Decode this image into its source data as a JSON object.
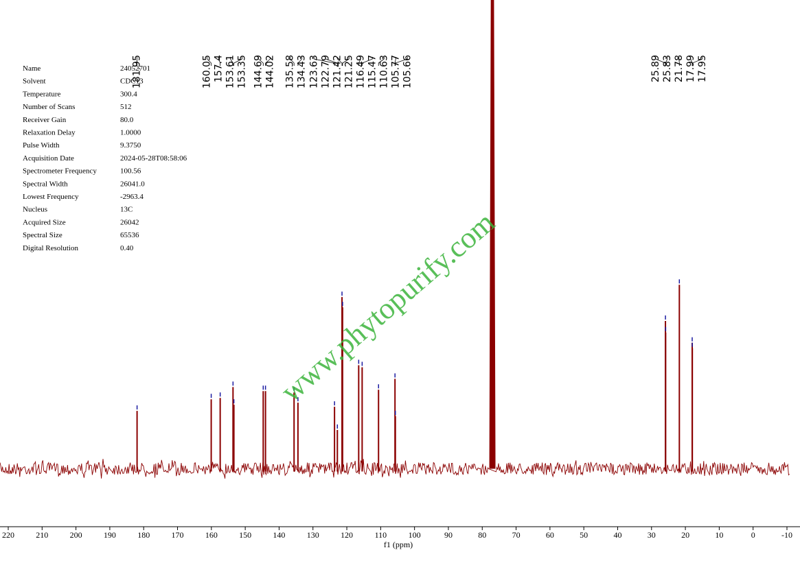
{
  "chart_data": {
    "type": "nmr",
    "x_label": "f1 (ppm)",
    "xlim": [
      220,
      -10
    ],
    "ylim": [
      -80,
      680
    ],
    "xticks": [
      220,
      210,
      200,
      190,
      180,
      170,
      160,
      150,
      140,
      130,
      120,
      110,
      100,
      90,
      80,
      70,
      60,
      50,
      40,
      30,
      20,
      10,
      0,
      -10
    ],
    "color": "#8b0000",
    "marker_color": "#1a1aa0",
    "peaks": {
      "x": [
        181.95,
        160.05,
        157.4,
        153.61,
        153.35,
        144.69,
        144.02,
        135.58,
        134.43,
        123.63,
        122.79,
        121.42,
        121.25,
        116.49,
        115.47,
        110.63,
        105.77,
        105.66,
        25.89,
        25.83,
        21.78,
        17.99,
        17.95
      ],
      "values": [
        85,
        102,
        104,
        120,
        94,
        114,
        114,
        112,
        97,
        91,
        57,
        252,
        237,
        152,
        149,
        116,
        132,
        77,
        217,
        200,
        270,
        185,
        177
      ]
    },
    "solvent_peak": {
      "x": 77.0,
      "value": 800
    },
    "watermark": "www.phytopurify.com",
    "parameters": [
      [
        "Name",
        "24052701"
      ],
      [
        "Solvent",
        "CDC13"
      ],
      [
        "Temperature",
        "300.4"
      ],
      [
        "Number of Scans",
        "512"
      ],
      [
        "Receiver Gain",
        "80.0"
      ],
      [
        "Relaxation Delay",
        "1.0000"
      ],
      [
        "Pulse Width",
        "9.3750"
      ],
      [
        "Acquisition Date",
        "2024-05-28T08:58:06"
      ],
      [
        "Spectrometer Frequency",
        "100.56"
      ],
      [
        "Spectral Width",
        "26041.0"
      ],
      [
        "Lowest Frequency",
        "-2963.4"
      ],
      [
        "Nucleus",
        "13C"
      ],
      [
        "Acquired Size",
        "26042"
      ],
      [
        "Spectral Size",
        "65536"
      ],
      [
        "Digital Resolution",
        "0.40"
      ]
    ]
  }
}
